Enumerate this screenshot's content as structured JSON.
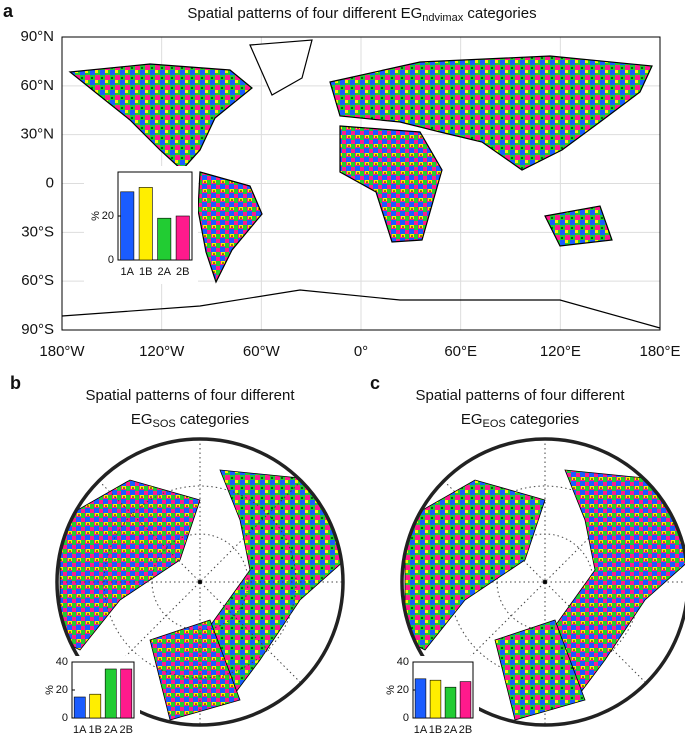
{
  "chart_data": [
    {
      "type": "map",
      "panel": "a",
      "title": "Spatial patterns of four different EG",
      "title_subscript": "ndvimax",
      "title_end": " categories",
      "xlim": [
        -180,
        180
      ],
      "ylim": [
        -90,
        90
      ],
      "xticks": [
        {
          "value": -180,
          "label": "180°W"
        },
        {
          "value": -120,
          "label": "120°W"
        },
        {
          "value": -60,
          "label": "60°W"
        },
        {
          "value": 0,
          "label": "0°"
        },
        {
          "value": 60,
          "label": "60°E"
        },
        {
          "value": 120,
          "label": "120°E"
        },
        {
          "value": 180,
          "label": "180°E"
        }
      ],
      "yticks": [
        {
          "value": 90,
          "label": "90°N"
        },
        {
          "value": 60,
          "label": "60°N"
        },
        {
          "value": 30,
          "label": "30°N"
        },
        0,
        {
          "value": -30,
          "label": "30°S"
        },
        {
          "value": -60,
          "label": "60°S"
        },
        {
          "value": -90,
          "label": "90°S"
        }
      ],
      "grid": true
    },
    {
      "type": "bar",
      "y_label": "%",
      "categories": [
        "1A",
        "1B",
        "2A",
        "2B"
      ],
      "values": [
        31,
        33,
        19,
        20
      ],
      "colors": [
        "#1a5cff",
        "#ffee00",
        "#22cc33",
        "#ff1a8c"
      ],
      "ylim": [
        0,
        40
      ],
      "yticks": [
        0,
        20
      ]
    },
    {
      "type": "polar-map",
      "panel": "b",
      "title": "Spatial patterns of four different",
      "title_line2": "EG",
      "title_subscript": "SOS",
      "title_end": " categories"
    },
    {
      "type": "bar",
      "y_label": "%",
      "categories": [
        "1A",
        "1B",
        "2A",
        "2B"
      ],
      "values": [
        15,
        17,
        35,
        35
      ],
      "colors": [
        "#1a5cff",
        "#ffee00",
        "#22cc33",
        "#ff1a8c"
      ],
      "ylim": [
        0,
        40
      ],
      "yticks": [
        0,
        20,
        40
      ]
    },
    {
      "type": "polar-map",
      "panel": "c",
      "title": "Spatial patterns of four different",
      "title_line2": "EG",
      "title_subscript": "EOS",
      "title_end": " categories"
    },
    {
      "type": "bar",
      "y_label": "%",
      "categories": [
        "1A",
        "1B",
        "2A",
        "2B"
      ],
      "values": [
        28,
        27,
        22,
        26
      ],
      "colors": [
        "#1a5cff",
        "#ffee00",
        "#22cc33",
        "#ff1a8c"
      ],
      "ylim": [
        0,
        40
      ],
      "yticks": [
        0,
        20,
        40
      ]
    }
  ]
}
